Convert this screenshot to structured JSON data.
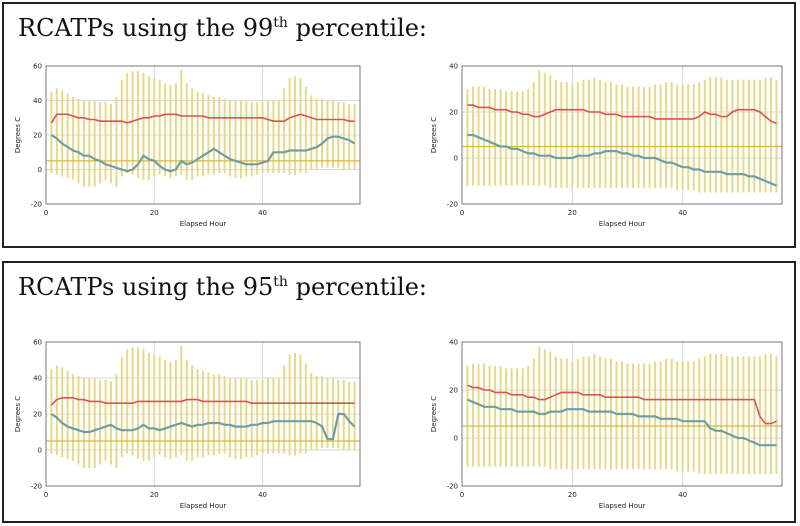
{
  "panels": [
    {
      "title_prefix": "RCATPs using the ",
      "title_number": "99",
      "title_sup": "th",
      "title_suffix": " percentile:"
    },
    {
      "title_prefix": "RCATPs using the ",
      "title_number": "95",
      "title_sup": "th",
      "title_suffix": " percentile:"
    }
  ],
  "colors": {
    "range_bar": "#e6d98a",
    "upper_line": "#d9534f",
    "lower_line": "#6f9fa3",
    "threshold_line": "#d4b84a",
    "grid": "#d8d8d8"
  },
  "chart_data": [
    {
      "type": "line",
      "xlabel": "Elapsed Hour",
      "ylabel": "Degrees C",
      "xlim": [
        0,
        58
      ],
      "ylim": [
        -20,
        60
      ],
      "xticks": [
        "0",
        "20",
        "40"
      ],
      "yticks": [
        "-20",
        "0",
        "20",
        "40",
        "60"
      ],
      "x": [
        1,
        2,
        3,
        4,
        5,
        6,
        7,
        8,
        9,
        10,
        11,
        12,
        13,
        14,
        15,
        16,
        17,
        18,
        19,
        20,
        21,
        22,
        23,
        24,
        25,
        26,
        27,
        28,
        29,
        30,
        31,
        32,
        33,
        34,
        35,
        36,
        37,
        38,
        39,
        40,
        41,
        42,
        43,
        44,
        45,
        46,
        47,
        48,
        49,
        50,
        51,
        52,
        53,
        54,
        55,
        56,
        57
      ],
      "bar_high": [
        45,
        47,
        46,
        44,
        42,
        41,
        40,
        40,
        40,
        39,
        39,
        38,
        42,
        52,
        56,
        57,
        57,
        56,
        54,
        53,
        52,
        50,
        49,
        50,
        58,
        50,
        47,
        45,
        44,
        43,
        42,
        42,
        41,
        40,
        40,
        40,
        40,
        39,
        39,
        39,
        40,
        40,
        40,
        47,
        53,
        54,
        53,
        48,
        43,
        41,
        41,
        40,
        40,
        39,
        39,
        38,
        38
      ],
      "bar_low": [
        -2,
        -3,
        -4,
        -5,
        -6,
        -8,
        -10,
        -10,
        -10,
        -8,
        -6,
        -8,
        -10,
        -4,
        -2,
        -3,
        -5,
        -6,
        -6,
        -4,
        -3,
        -4,
        -5,
        -4,
        -3,
        -6,
        -6,
        -4,
        -4,
        -3,
        -3,
        -2,
        -2,
        -4,
        -5,
        -5,
        -4,
        -4,
        -3,
        -2,
        -2,
        -2,
        -2,
        -2,
        -3,
        -3,
        -2,
        -2,
        0,
        0,
        1,
        1,
        1,
        1,
        0,
        0,
        0
      ],
      "threshold": 5,
      "series": [
        {
          "role": "upper",
          "values": [
            27,
            32,
            32,
            32,
            31,
            30,
            30,
            29,
            29,
            28,
            28,
            28,
            28,
            28,
            27,
            28,
            29,
            30,
            30,
            31,
            31,
            32,
            32,
            32,
            31,
            31,
            31,
            31,
            31,
            30,
            30,
            30,
            30,
            30,
            30,
            30,
            30,
            30,
            30,
            30,
            29,
            28,
            28,
            28,
            30,
            31,
            32,
            31,
            30,
            29,
            29,
            29,
            29,
            29,
            29,
            28,
            28
          ]
        },
        {
          "role": "lower",
          "values": [
            20,
            18,
            15,
            13,
            11,
            10,
            8,
            8,
            6,
            5,
            3,
            2,
            1,
            0,
            -1,
            0,
            3,
            8,
            6,
            5,
            2,
            0,
            -1,
            0,
            5,
            3,
            4,
            6,
            8,
            10,
            12,
            10,
            8,
            6,
            5,
            4,
            3,
            3,
            3,
            4,
            5,
            10,
            10,
            10,
            11,
            11,
            11,
            11,
            12,
            13,
            15,
            18,
            19,
            19,
            18,
            17,
            15
          ]
        }
      ]
    },
    {
      "type": "line",
      "xlabel": "Elapsed Hour",
      "ylabel": "Degrees C",
      "xlim": [
        0,
        58
      ],
      "ylim": [
        -20,
        40
      ],
      "xticks": [
        "0",
        "20",
        "40"
      ],
      "yticks": [
        "-20",
        "0",
        "20",
        "40"
      ],
      "x": [
        1,
        2,
        3,
        4,
        5,
        6,
        7,
        8,
        9,
        10,
        11,
        12,
        13,
        14,
        15,
        16,
        17,
        18,
        19,
        20,
        21,
        22,
        23,
        24,
        25,
        26,
        27,
        28,
        29,
        30,
        31,
        32,
        33,
        34,
        35,
        36,
        37,
        38,
        39,
        40,
        41,
        42,
        43,
        44,
        45,
        46,
        47,
        48,
        49,
        50,
        51,
        52,
        53,
        54,
        55,
        56,
        57
      ],
      "bar_high": [
        30,
        31,
        31,
        31,
        30,
        30,
        30,
        29,
        29,
        29,
        29,
        30,
        33,
        38,
        37,
        36,
        34,
        33,
        33,
        32,
        33,
        34,
        34,
        35,
        34,
        33,
        33,
        32,
        32,
        31,
        31,
        31,
        31,
        31,
        32,
        32,
        33,
        33,
        32,
        32,
        32,
        32,
        33,
        34,
        35,
        35,
        35,
        34,
        34,
        34,
        34,
        34,
        34,
        34,
        35,
        35,
        34
      ],
      "bar_low": [
        -12,
        -12,
        -12,
        -12,
        -12,
        -12,
        -12,
        -12,
        -12,
        -12,
        -12,
        -12,
        -12,
        -12,
        -12,
        -13,
        -13,
        -13,
        -13,
        -13,
        -13,
        -13,
        -13,
        -13,
        -13,
        -13,
        -13,
        -13,
        -13,
        -13,
        -13,
        -13,
        -13,
        -13,
        -13,
        -13,
        -13,
        -13,
        -14,
        -14,
        -14,
        -14,
        -15,
        -15,
        -15,
        -15,
        -15,
        -15,
        -15,
        -15,
        -15,
        -15,
        -15,
        -15,
        -15,
        -15,
        -15
      ],
      "threshold": 5,
      "series": [
        {
          "role": "upper",
          "values": [
            23,
            23,
            22,
            22,
            22,
            21,
            21,
            21,
            20,
            20,
            19,
            19,
            18,
            18,
            19,
            20,
            21,
            21,
            21,
            21,
            21,
            21,
            20,
            20,
            20,
            19,
            19,
            19,
            18,
            18,
            18,
            18,
            18,
            18,
            17,
            17,
            17,
            17,
            17,
            17,
            17,
            17,
            18,
            20,
            19,
            19,
            18,
            18,
            20,
            21,
            21,
            21,
            21,
            20,
            18,
            16,
            15
          ]
        },
        {
          "role": "lower",
          "values": [
            10,
            10,
            9,
            8,
            7,
            6,
            5,
            5,
            4,
            4,
            3,
            2,
            2,
            1,
            1,
            1,
            0,
            0,
            0,
            0,
            1,
            1,
            1,
            2,
            2,
            3,
            3,
            3,
            2,
            2,
            1,
            1,
            0,
            0,
            0,
            -1,
            -2,
            -2,
            -3,
            -4,
            -4,
            -5,
            -5,
            -6,
            -6,
            -6,
            -6,
            -7,
            -7,
            -7,
            -7,
            -8,
            -8,
            -9,
            -10,
            -11,
            -12
          ]
        }
      ]
    },
    {
      "type": "line",
      "xlabel": "Elapsed Hour",
      "ylabel": "Degrees C",
      "xlim": [
        0,
        58
      ],
      "ylim": [
        -20,
        60
      ],
      "xticks": [
        "0",
        "20",
        "40"
      ],
      "yticks": [
        "-20",
        "0",
        "20",
        "40",
        "60"
      ],
      "x": [
        1,
        2,
        3,
        4,
        5,
        6,
        7,
        8,
        9,
        10,
        11,
        12,
        13,
        14,
        15,
        16,
        17,
        18,
        19,
        20,
        21,
        22,
        23,
        24,
        25,
        26,
        27,
        28,
        29,
        30,
        31,
        32,
        33,
        34,
        35,
        36,
        37,
        38,
        39,
        40,
        41,
        42,
        43,
        44,
        45,
        46,
        47,
        48,
        49,
        50,
        51,
        52,
        53,
        54,
        55,
        56,
        57
      ],
      "bar_high": [
        45,
        47,
        46,
        44,
        42,
        41,
        40,
        40,
        40,
        39,
        39,
        38,
        42,
        52,
        56,
        57,
        57,
        56,
        54,
        53,
        52,
        50,
        49,
        50,
        58,
        50,
        47,
        45,
        44,
        43,
        42,
        42,
        41,
        40,
        40,
        40,
        40,
        39,
        39,
        39,
        40,
        40,
        40,
        47,
        53,
        54,
        53,
        48,
        43,
        41,
        41,
        40,
        40,
        39,
        39,
        38,
        38
      ],
      "bar_low": [
        -2,
        -3,
        -4,
        -5,
        -6,
        -8,
        -10,
        -10,
        -10,
        -8,
        -6,
        -8,
        -10,
        -4,
        -2,
        -3,
        -5,
        -6,
        -6,
        -4,
        -3,
        -4,
        -5,
        -4,
        -3,
        -6,
        -6,
        -4,
        -4,
        -3,
        -3,
        -2,
        -2,
        -4,
        -5,
        -5,
        -4,
        -4,
        -3,
        -2,
        -2,
        -2,
        -2,
        -2,
        -3,
        -3,
        -2,
        -2,
        0,
        0,
        1,
        1,
        1,
        1,
        0,
        0,
        0
      ],
      "threshold": 5,
      "series": [
        {
          "role": "upper",
          "values": [
            25,
            28,
            29,
            29,
            29,
            28,
            28,
            27,
            27,
            27,
            26,
            26,
            26,
            26,
            26,
            26,
            27,
            27,
            27,
            27,
            27,
            27,
            27,
            27,
            27,
            28,
            28,
            28,
            27,
            27,
            27,
            27,
            27,
            27,
            27,
            27,
            27,
            26,
            26,
            26,
            26,
            26,
            26,
            26,
            26,
            26,
            26,
            26,
            26,
            26,
            26,
            26,
            26,
            26,
            26,
            26,
            26
          ]
        },
        {
          "role": "lower",
          "values": [
            20,
            18,
            15,
            13,
            12,
            11,
            10,
            10,
            11,
            12,
            13,
            14,
            12,
            11,
            11,
            11,
            12,
            14,
            12,
            12,
            11,
            12,
            13,
            14,
            15,
            14,
            13,
            14,
            14,
            15,
            15,
            15,
            14,
            14,
            13,
            13,
            13,
            14,
            14,
            15,
            15,
            16,
            16,
            16,
            16,
            16,
            16,
            16,
            16,
            15,
            13,
            6,
            6,
            20,
            20,
            16,
            13
          ]
        }
      ]
    },
    {
      "type": "line",
      "xlabel": "Elapsed Hour",
      "ylabel": "Degrees C",
      "xlim": [
        0,
        58
      ],
      "ylim": [
        -20,
        40
      ],
      "xticks": [
        "0",
        "20",
        "40"
      ],
      "yticks": [
        "-20",
        "0",
        "20",
        "40"
      ],
      "x": [
        1,
        2,
        3,
        4,
        5,
        6,
        7,
        8,
        9,
        10,
        11,
        12,
        13,
        14,
        15,
        16,
        17,
        18,
        19,
        20,
        21,
        22,
        23,
        24,
        25,
        26,
        27,
        28,
        29,
        30,
        31,
        32,
        33,
        34,
        35,
        36,
        37,
        38,
        39,
        40,
        41,
        42,
        43,
        44,
        45,
        46,
        47,
        48,
        49,
        50,
        51,
        52,
        53,
        54,
        55,
        56,
        57
      ],
      "bar_high": [
        30,
        31,
        31,
        31,
        30,
        30,
        30,
        29,
        29,
        29,
        29,
        30,
        33,
        38,
        37,
        36,
        34,
        33,
        33,
        32,
        33,
        34,
        34,
        35,
        34,
        33,
        33,
        32,
        32,
        31,
        31,
        31,
        31,
        31,
        32,
        32,
        33,
        33,
        32,
        32,
        32,
        32,
        33,
        34,
        35,
        35,
        35,
        34,
        34,
        34,
        34,
        34,
        34,
        34,
        35,
        35,
        34
      ],
      "bar_low": [
        -12,
        -12,
        -12,
        -12,
        -12,
        -12,
        -12,
        -12,
        -12,
        -12,
        -12,
        -12,
        -12,
        -12,
        -12,
        -13,
        -13,
        -13,
        -13,
        -13,
        -13,
        -13,
        -13,
        -13,
        -13,
        -13,
        -13,
        -13,
        -13,
        -13,
        -13,
        -13,
        -13,
        -13,
        -13,
        -13,
        -13,
        -13,
        -14,
        -14,
        -14,
        -14,
        -15,
        -15,
        -15,
        -15,
        -15,
        -15,
        -15,
        -15,
        -15,
        -15,
        -15,
        -15,
        -15,
        -15,
        -15
      ],
      "threshold": 5,
      "series": [
        {
          "role": "upper",
          "values": [
            22,
            21,
            21,
            20,
            20,
            19,
            19,
            19,
            18,
            18,
            18,
            17,
            17,
            16,
            16,
            17,
            18,
            19,
            19,
            19,
            19,
            18,
            18,
            18,
            18,
            17,
            17,
            17,
            17,
            17,
            17,
            17,
            16,
            16,
            16,
            16,
            16,
            16,
            16,
            16,
            16,
            16,
            16,
            16,
            16,
            16,
            16,
            16,
            16,
            16,
            16,
            16,
            16,
            9,
            6,
            6,
            7
          ]
        },
        {
          "role": "lower",
          "values": [
            16,
            15,
            14,
            13,
            13,
            13,
            12,
            12,
            12,
            11,
            11,
            11,
            11,
            10,
            10,
            11,
            11,
            11,
            12,
            12,
            12,
            12,
            11,
            11,
            11,
            11,
            11,
            10,
            10,
            10,
            10,
            9,
            9,
            9,
            9,
            8,
            8,
            8,
            8,
            7,
            7,
            7,
            7,
            7,
            4,
            3,
            3,
            2,
            1,
            0,
            0,
            -1,
            -2,
            -3,
            -3,
            -3,
            -3
          ]
        }
      ]
    }
  ]
}
